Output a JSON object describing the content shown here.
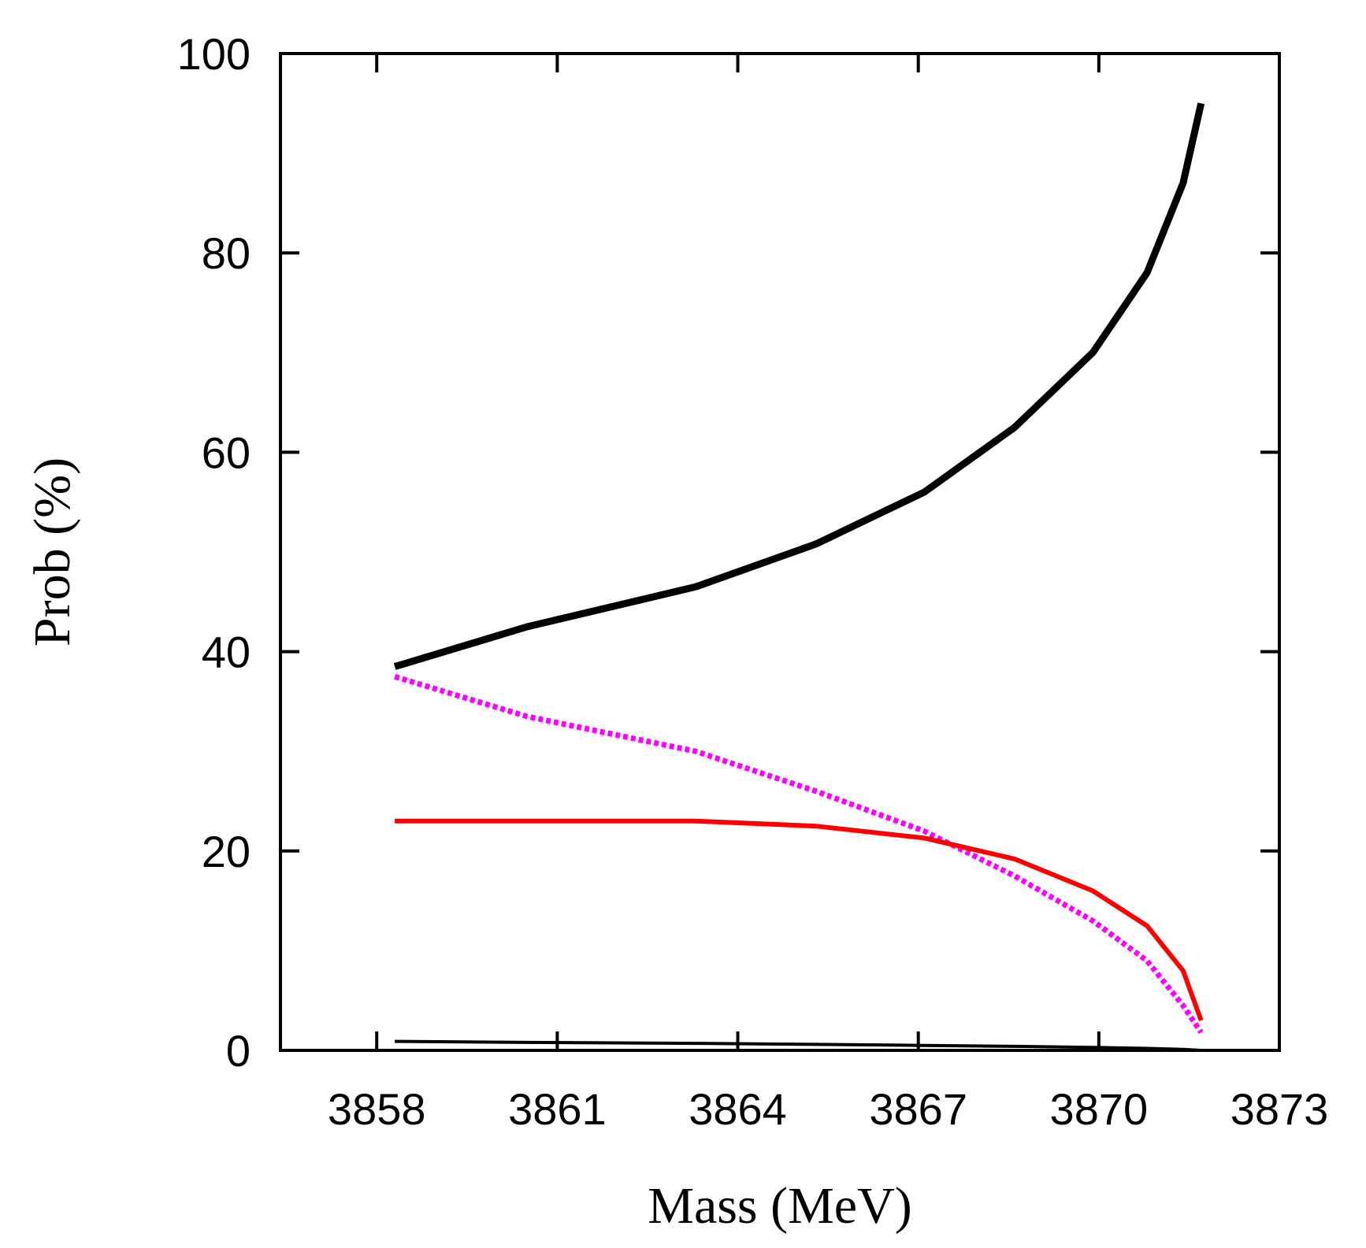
{
  "chart_data": {
    "type": "line",
    "title": "",
    "xlabel": "Mass (MeV)",
    "ylabel": "Prob (%)",
    "xlim": [
      3856.4,
      3873
    ],
    "ylim": [
      0,
      100
    ],
    "xticks": [
      3858,
      3861,
      3864,
      3867,
      3870,
      3873
    ],
    "xtick_labels": [
      "3858",
      "3861",
      "3864",
      "3867",
      "3870",
      "3873"
    ],
    "yticks": [
      0,
      20,
      40,
      60,
      80,
      100
    ],
    "ytick_labels": [
      "0",
      "20",
      "40",
      "60",
      "80",
      "100"
    ],
    "grid": false,
    "legend": "none",
    "series": [
      {
        "name": "black thick solid",
        "color": "#000000",
        "style": "solid-thick",
        "x": [
          3858.3,
          3860.5,
          3863.3,
          3865.3,
          3867.1,
          3868.6,
          3869.9,
          3870.8,
          3871.4,
          3871.7
        ],
        "y": [
          38.5,
          42.5,
          46.5,
          50.8,
          56.0,
          62.5,
          70.0,
          78.0,
          87.0,
          95.0
        ]
      },
      {
        "name": "magenta dotted",
        "color": "#ff00ff",
        "style": "dotted",
        "x": [
          3858.3,
          3860.5,
          3863.3,
          3865.3,
          3867.1,
          3868.6,
          3869.9,
          3870.8,
          3871.4,
          3871.7
        ],
        "y": [
          37.5,
          33.5,
          30.0,
          26.0,
          22.0,
          17.5,
          13.0,
          9.0,
          4.5,
          1.8
        ]
      },
      {
        "name": "red solid",
        "color": "#ff0000",
        "style": "solid",
        "x": [
          3858.3,
          3860.5,
          3863.3,
          3865.3,
          3867.1,
          3868.6,
          3869.9,
          3870.8,
          3871.4,
          3871.7
        ],
        "y": [
          23.0,
          23.0,
          23.0,
          22.5,
          21.3,
          19.2,
          16.0,
          12.5,
          8.0,
          3.0
        ]
      },
      {
        "name": "black thin solid",
        "color": "#000000",
        "style": "solid-thin",
        "x": [
          3858.3,
          3860.5,
          3863.3,
          3865.3,
          3867.1,
          3868.6,
          3869.9,
          3870.8,
          3871.4,
          3871.7
        ],
        "y": [
          0.9,
          0.8,
          0.7,
          0.6,
          0.5,
          0.4,
          0.3,
          0.2,
          0.1,
          0.0
        ]
      }
    ]
  }
}
